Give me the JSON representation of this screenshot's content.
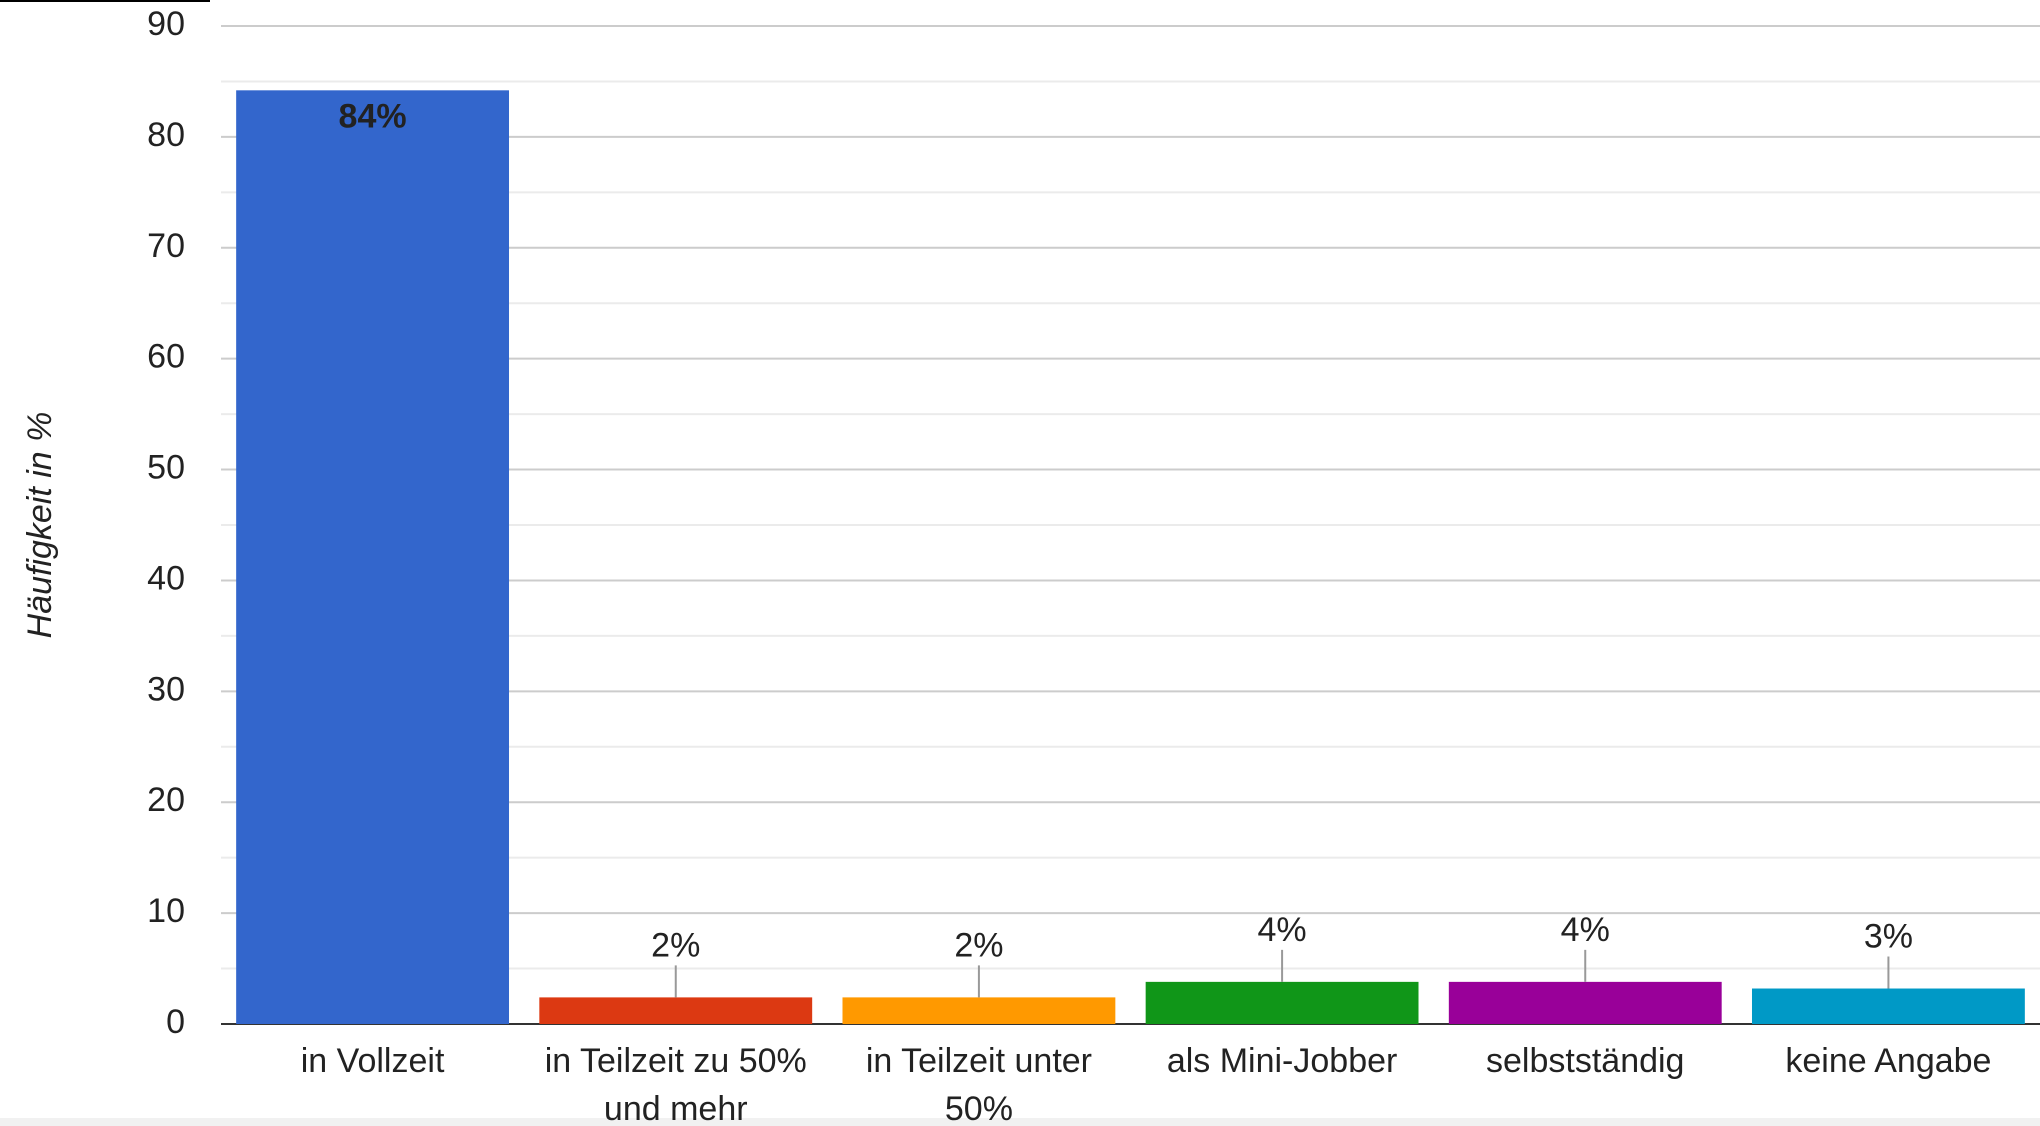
{
  "chart_data": {
    "type": "bar",
    "y_axis_label": "Häufigkeit in %",
    "categories": [
      "in Vollzeit",
      "in Teilzeit zu 50% und mehr",
      "in Teilzeit unter 50%",
      "als Mini-Jobber",
      "selbstständig",
      "keine Angabe"
    ],
    "values": [
      84.2,
      2.4,
      2.4,
      3.8,
      3.8,
      3.2
    ],
    "value_labels": [
      "84%",
      "2%",
      "2%",
      "4%",
      "4%",
      "3%"
    ],
    "colors": [
      "#3366cc",
      "#dc3912",
      "#ff9900",
      "#109618",
      "#990099",
      "#0099c6"
    ],
    "ylim": [
      0,
      90
    ],
    "yticks": [
      0,
      10,
      20,
      30,
      40,
      50,
      60,
      70,
      80,
      90
    ],
    "grid": true
  }
}
